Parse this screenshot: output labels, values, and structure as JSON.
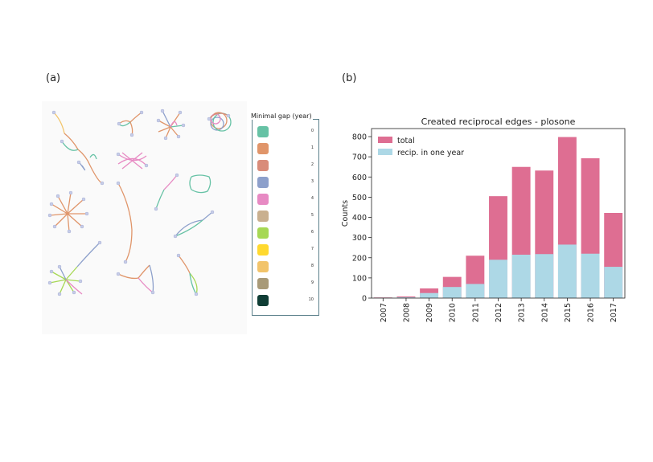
{
  "panel_a": {
    "label": "(a)",
    "legend": {
      "title": "Minimal gap (year)",
      "items": [
        {
          "value": "0",
          "color": "#66c2a5"
        },
        {
          "value": "1",
          "color": "#e0956a"
        },
        {
          "value": "2",
          "color": "#d98c7a"
        },
        {
          "value": "3",
          "color": "#8da0cb"
        },
        {
          "value": "4",
          "color": "#e78ac3"
        },
        {
          "value": "5",
          "color": "#c9b08f"
        },
        {
          "value": "6",
          "color": "#a6d854"
        },
        {
          "value": "7",
          "color": "#ffd92f"
        },
        {
          "value": "8",
          "color": "#f2c46a"
        },
        {
          "value": "9",
          "color": "#a89a78"
        },
        {
          "value": "10",
          "color": "#0f3d35"
        }
      ]
    }
  },
  "panel_b": {
    "label": "(b)"
  },
  "chart_data": {
    "type": "bar",
    "stacked": "overlay",
    "title": "Created reciprocal edges - plosone",
    "xlabel": "",
    "ylabel": "Counts",
    "categories": [
      "2007",
      "2008",
      "2009",
      "2010",
      "2011",
      "2012",
      "2013",
      "2014",
      "2015",
      "2016",
      "2017"
    ],
    "series": [
      {
        "name": "total",
        "color": "#de6e92",
        "values": [
          3,
          8,
          48,
          105,
          210,
          505,
          650,
          632,
          798,
          693,
          422
        ]
      },
      {
        "name": "recip. in one year",
        "color": "#add8e6",
        "values": [
          1,
          4,
          25,
          55,
          70,
          190,
          215,
          218,
          265,
          220,
          155
        ]
      }
    ],
    "ylim": [
      0,
      840
    ],
    "yticks": [
      0,
      100,
      200,
      300,
      400,
      500,
      600,
      700,
      800
    ],
    "legend_position": "top-left",
    "grid": false
  }
}
